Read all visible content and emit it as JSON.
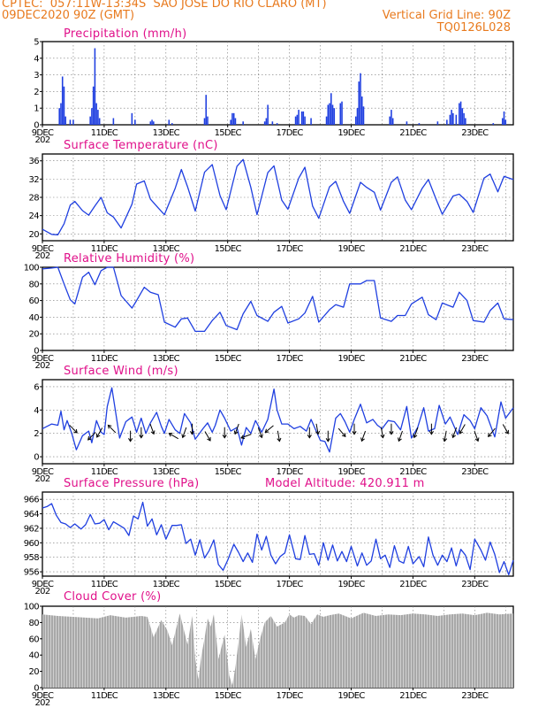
{
  "header": {
    "line1_left": "CPTEC:  057:11W-13:34S  SAO JOSE DO RIO CLARO (MT)",
    "line2_left": "09DEC2020 90Z (GMT)",
    "line2_right": "Vertical Grid Line: 90Z",
    "line3_right": "TQ0126L028"
  },
  "colors": {
    "header": "#e87a1e",
    "title": "#e0108a",
    "series": "#1f3fe0",
    "cloud": "#a8a8a8",
    "arrows": "#000000"
  },
  "x_tick_labels": [
    "9DEC",
    "11DEC",
    "13DEC",
    "15DEC",
    "17DEC",
    "19DEC",
    "21DEC",
    "23DEC"
  ],
  "x_year_stub": "202",
  "chart_data": [
    {
      "type": "bar",
      "title": "Precipitation  (mm/h)",
      "ylabel": "mm/h",
      "ylim": [
        0,
        5
      ],
      "yticks": [
        0,
        1,
        2,
        3,
        4,
        5
      ],
      "x_range_days": [
        0,
        15.25
      ],
      "bars": [
        [
          0.55,
          1.0
        ],
        [
          0.6,
          1.3
        ],
        [
          0.65,
          2.9
        ],
        [
          0.7,
          2.3
        ],
        [
          0.75,
          0.5
        ],
        [
          0.9,
          0.3
        ],
        [
          1.0,
          0.3
        ],
        [
          1.55,
          0.5
        ],
        [
          1.6,
          1.0
        ],
        [
          1.65,
          2.3
        ],
        [
          1.7,
          4.6
        ],
        [
          1.75,
          1.3
        ],
        [
          1.8,
          0.9
        ],
        [
          1.85,
          0.4
        ],
        [
          2.3,
          0.4
        ],
        [
          2.9,
          0.7
        ],
        [
          3.0,
          0.3
        ],
        [
          3.5,
          0.2
        ],
        [
          3.55,
          0.3
        ],
        [
          3.6,
          0.2
        ],
        [
          4.1,
          0.3
        ],
        [
          4.2,
          0.1
        ],
        [
          5.25,
          0.4
        ],
        [
          5.3,
          1.8
        ],
        [
          5.35,
          0.5
        ],
        [
          6.1,
          0.3
        ],
        [
          6.15,
          0.7
        ],
        [
          6.2,
          0.7
        ],
        [
          6.25,
          0.4
        ],
        [
          6.5,
          0.2
        ],
        [
          7.2,
          0.2
        ],
        [
          7.25,
          0.4
        ],
        [
          7.3,
          1.2
        ],
        [
          7.45,
          0.2
        ],
        [
          7.6,
          0.1
        ],
        [
          8.2,
          0.5
        ],
        [
          8.25,
          0.6
        ],
        [
          8.3,
          0.9
        ],
        [
          8.4,
          0.8
        ],
        [
          8.45,
          0.8
        ],
        [
          8.5,
          0.5
        ],
        [
          8.7,
          0.4
        ],
        [
          9.2,
          0.5
        ],
        [
          9.25,
          1.2
        ],
        [
          9.3,
          1.3
        ],
        [
          9.35,
          1.9
        ],
        [
          9.4,
          1.2
        ],
        [
          9.45,
          1.0
        ],
        [
          9.65,
          1.3
        ],
        [
          9.7,
          1.4
        ],
        [
          10.15,
          0.5
        ],
        [
          10.2,
          1.0
        ],
        [
          10.25,
          2.6
        ],
        [
          10.3,
          3.1
        ],
        [
          10.35,
          1.7
        ],
        [
          10.4,
          1.1
        ],
        [
          11.25,
          0.5
        ],
        [
          11.3,
          0.9
        ],
        [
          11.35,
          0.4
        ],
        [
          11.8,
          0.2
        ],
        [
          12.2,
          0.1
        ],
        [
          12.8,
          0.2
        ],
        [
          13.1,
          0.3
        ],
        [
          13.2,
          0.6
        ],
        [
          13.25,
          0.9
        ],
        [
          13.3,
          0.7
        ],
        [
          13.4,
          0.6
        ],
        [
          13.5,
          1.3
        ],
        [
          13.55,
          1.4
        ],
        [
          13.6,
          1.0
        ],
        [
          13.65,
          0.7
        ],
        [
          13.7,
          0.4
        ],
        [
          14.6,
          0.1
        ],
        [
          14.9,
          0.4
        ],
        [
          14.95,
          0.8
        ],
        [
          15.0,
          0.3
        ]
      ]
    },
    {
      "type": "line",
      "title": "Surface Temperature (nC)",
      "ylabel": "nC",
      "ylim": [
        18.5,
        37.5
      ],
      "yticks": [
        20,
        24,
        28,
        32,
        36
      ],
      "x": [
        0,
        0.3,
        0.5,
        0.7,
        0.9,
        1.05,
        1.3,
        1.5,
        1.7,
        1.9,
        2.1,
        2.3,
        2.55,
        2.9,
        3.05,
        3.3,
        3.5,
        3.75,
        3.95,
        4.3,
        4.5,
        4.7,
        4.95,
        5.25,
        5.5,
        5.75,
        5.95,
        6.3,
        6.5,
        6.75,
        6.95,
        7.3,
        7.5,
        7.75,
        7.95,
        8.3,
        8.5,
        8.75,
        8.95,
        9.3,
        9.5,
        9.75,
        9.95,
        10.3,
        10.5,
        10.75,
        10.95,
        11.3,
        11.5,
        11.75,
        11.95,
        12.3,
        12.5,
        12.75,
        12.95,
        13.3,
        13.5,
        13.75,
        13.95,
        14.3,
        14.5,
        14.75,
        14.95,
        15.25
      ],
      "y": [
        21,
        19.9,
        19.8,
        22.2,
        26.3,
        27.1,
        25.1,
        24.1,
        26.1,
        28,
        24.6,
        23.7,
        21.3,
        26.5,
        30.9,
        31.6,
        27.6,
        25.7,
        24.2,
        30,
        34.1,
        30.3,
        25,
        33.5,
        35.2,
        28.4,
        25.3,
        34.8,
        36.3,
        30.2,
        24.2,
        33.4,
        34.9,
        27.4,
        25.4,
        32.2,
        34.6,
        26.1,
        23.4,
        30.3,
        31.5,
        27.1,
        24.5,
        31.3,
        30.2,
        29.1,
        25.2,
        31.3,
        32.5,
        27.4,
        25.3,
        30,
        31.9,
        27.6,
        24.3,
        28.3,
        28.7,
        27.1,
        24.7,
        32.2,
        33.1,
        29.2,
        32.6,
        31.9
      ]
    },
    {
      "type": "line",
      "title": "Relative Humidity  (%)",
      "ylabel": "%",
      "ylim": [
        0,
        100
      ],
      "yticks": [
        0,
        20,
        40,
        60,
        80,
        100
      ],
      "x": [
        0,
        0.3,
        0.5,
        0.7,
        0.9,
        1.05,
        1.3,
        1.5,
        1.7,
        1.9,
        2.1,
        2.3,
        2.55,
        2.9,
        3.05,
        3.3,
        3.5,
        3.75,
        3.95,
        4.3,
        4.5,
        4.7,
        4.95,
        5.25,
        5.5,
        5.75,
        5.95,
        6.3,
        6.5,
        6.75,
        6.95,
        7.3,
        7.5,
        7.75,
        7.95,
        8.3,
        8.5,
        8.75,
        8.95,
        9.3,
        9.5,
        9.75,
        9.95,
        10.3,
        10.5,
        10.75,
        10.95,
        11.3,
        11.5,
        11.75,
        11.95,
        12.3,
        12.5,
        12.75,
        12.95,
        13.3,
        13.5,
        13.75,
        13.95,
        14.3,
        14.5,
        14.75,
        14.95,
        15.25
      ],
      "y": [
        98,
        99,
        100,
        80,
        61,
        56,
        88,
        94,
        79,
        96,
        100,
        100,
        66,
        51,
        60,
        76,
        70,
        67,
        34,
        28,
        38,
        39,
        23,
        23,
        36,
        46,
        30,
        25,
        44,
        59,
        42,
        35,
        46,
        53,
        33,
        38,
        45,
        65,
        34,
        49,
        55,
        52,
        80,
        80,
        84,
        84,
        39,
        35,
        42,
        42,
        56,
        64,
        43,
        37,
        57,
        52,
        70,
        60,
        36,
        34,
        48,
        57,
        38,
        37
      ]
    },
    {
      "type": "line",
      "title": "Surface  Wind  (m/s)",
      "ylabel": "m/s",
      "ylim": [
        -0.6,
        6.6
      ],
      "yticks": [
        0,
        2,
        4,
        6
      ],
      "x": [
        0,
        0.3,
        0.5,
        0.6,
        0.7,
        0.8,
        0.95,
        1.1,
        1.3,
        1.5,
        1.6,
        1.75,
        1.9,
        2.0,
        2.1,
        2.25,
        2.35,
        2.5,
        2.7,
        2.9,
        3.05,
        3.2,
        3.35,
        3.5,
        3.7,
        3.85,
        3.95,
        4.1,
        4.3,
        4.45,
        4.6,
        4.8,
        4.95,
        5.2,
        5.35,
        5.5,
        5.6,
        5.75,
        5.9,
        6.1,
        6.3,
        6.45,
        6.6,
        6.75,
        6.9,
        7.1,
        7.3,
        7.5,
        7.6,
        7.75,
        7.95,
        8.15,
        8.35,
        8.55,
        8.7,
        8.85,
        9.0,
        9.15,
        9.3,
        9.5,
        9.65,
        9.8,
        9.95,
        10.1,
        10.3,
        10.5,
        10.7,
        10.85,
        11.0,
        11.2,
        11.4,
        11.6,
        11.8,
        11.95,
        12.15,
        12.35,
        12.5,
        12.7,
        12.85,
        13.05,
        13.2,
        13.45,
        13.65,
        13.85,
        14.0,
        14.2,
        14.4,
        14.65,
        14.85,
        15.0,
        15.25
      ],
      "y": [
        2.4,
        2.8,
        2.7,
        3.9,
        2.3,
        3.1,
        2.0,
        0.6,
        1.8,
        2.2,
        1.2,
        3.1,
        2.1,
        1.9,
        4.3,
        5.9,
        4.2,
        1.6,
        3.0,
        3.4,
        2.1,
        3.3,
        2.0,
        2.9,
        3.8,
        2.6,
        2.0,
        3.2,
        2.3,
        2.0,
        3.7,
        2.9,
        1.5,
        2.4,
        2.9,
        2.1,
        2.7,
        4.0,
        3.3,
        2.2,
        2.5,
        1.0,
        2.5,
        2.0,
        3.1,
        2.1,
        3.2,
        5.8,
        4.0,
        2.8,
        2.8,
        2.4,
        2.6,
        2.2,
        3.2,
        2.3,
        1.4,
        1.3,
        0.4,
        3.3,
        3.7,
        3.0,
        2.1,
        3.2,
        4.5,
        2.9,
        3.2,
        2.7,
        2.4,
        3.1,
        3.0,
        2.3,
        4.3,
        1.6,
        2.5,
        4.2,
        2.2,
        2.4,
        4.4,
        2.8,
        3.4,
        1.9,
        3.6,
        3.1,
        2.4,
        4.2,
        3.5,
        1.7,
        4.7,
        3.3,
        4.2
      ]
    },
    {
      "type": "line",
      "title": "Surface  Pressure (hPa)",
      "annotation": "Model Altitude: 420.911  m",
      "ylabel": "hPa",
      "ylim": [
        955.4,
        967.0
      ],
      "yticks": [
        956,
        958,
        960,
        962,
        964,
        966
      ],
      "x": [
        0,
        0.15,
        0.3,
        0.45,
        0.6,
        0.75,
        0.9,
        1.05,
        1.25,
        1.4,
        1.55,
        1.7,
        1.85,
        2.0,
        2.15,
        2.3,
        2.5,
        2.65,
        2.8,
        2.95,
        3.1,
        3.25,
        3.4,
        3.55,
        3.7,
        3.85,
        4.0,
        4.2,
        4.35,
        4.5,
        4.65,
        4.8,
        4.95,
        5.1,
        5.25,
        5.4,
        5.55,
        5.7,
        5.85,
        6.0,
        6.2,
        6.35,
        6.5,
        6.65,
        6.8,
        6.95,
        7.1,
        7.25,
        7.4,
        7.55,
        7.7,
        7.85,
        8.0,
        8.2,
        8.35,
        8.5,
        8.65,
        8.8,
        8.95,
        9.1,
        9.25,
        9.4,
        9.55,
        9.7,
        9.85,
        10.0,
        10.2,
        10.35,
        10.5,
        10.65,
        10.8,
        10.95,
        11.1,
        11.25,
        11.4,
        11.55,
        11.7,
        11.85,
        12.0,
        12.2,
        12.35,
        12.5,
        12.65,
        12.8,
        12.95,
        13.1,
        13.25,
        13.4,
        13.55,
        13.7,
        13.85,
        14.0,
        14.2,
        14.35,
        14.5,
        14.65,
        14.8,
        14.95,
        15.1,
        15.25
      ],
      "y": [
        964.8,
        965.0,
        965.4,
        963.8,
        962.8,
        962.6,
        962.1,
        962.6,
        961.9,
        962.5,
        963.9,
        962.6,
        962.7,
        963.2,
        961.8,
        962.9,
        962.4,
        962.0,
        961.0,
        963.7,
        963.3,
        965.6,
        962.3,
        963.3,
        961.1,
        962.5,
        960.5,
        962.4,
        962.4,
        962.5,
        959.9,
        960.5,
        958.3,
        960.4,
        957.9,
        958.9,
        960.4,
        957.0,
        956.2,
        957.6,
        959.8,
        958.7,
        957.4,
        958.6,
        957.3,
        961.2,
        959.0,
        960.9,
        958.3,
        957.1,
        958.1,
        958.6,
        961.1,
        957.8,
        957.7,
        961.0,
        958.4,
        958.5,
        956.9,
        960.0,
        957.6,
        959.7,
        957.5,
        958.8,
        957.4,
        959.5,
        956.8,
        958.6,
        956.9,
        957.5,
        960.5,
        957.8,
        958.3,
        956.6,
        959.6,
        957.5,
        957.2,
        959.5,
        957.1,
        958.1,
        956.7,
        960.8,
        958.3,
        956.9,
        958.3,
        957.4,
        959.3,
        956.8,
        959.1,
        958.3,
        956.3,
        960.5,
        959.0,
        957.6,
        960.1,
        958.4,
        955.9,
        957.4,
        955.6,
        957.6
      ]
    },
    {
      "type": "area",
      "title": "Cloud  Cover  (%)",
      "ylabel": "%",
      "ylim": [
        0,
        100
      ],
      "yticks": [
        0,
        20,
        40,
        60,
        80,
        100
      ],
      "x": [
        0,
        0.5,
        1.0,
        1.4,
        1.8,
        2.2,
        2.7,
        3.2,
        3.4,
        3.6,
        3.85,
        4.05,
        4.2,
        4.45,
        4.7,
        4.85,
        4.95,
        5.05,
        5.15,
        5.25,
        5.35,
        5.45,
        5.55,
        5.7,
        5.9,
        6.05,
        6.15,
        6.25,
        6.35,
        6.45,
        6.6,
        6.75,
        6.9,
        7.05,
        7.2,
        7.4,
        7.6,
        7.85,
        8.0,
        8.15,
        8.3,
        8.5,
        8.7,
        8.9,
        9.1,
        9.3,
        9.6,
        10.0,
        10.4,
        10.8,
        11.2,
        11.6,
        12.0,
        12.4,
        12.8,
        13.2,
        13.6,
        14.0,
        14.4,
        14.8,
        15.25
      ],
      "y": [
        90,
        88,
        87,
        86,
        85,
        89,
        86,
        88,
        87,
        62,
        83,
        70,
        52,
        91,
        53,
        88,
        35,
        10,
        40,
        60,
        85,
        75,
        90,
        35,
        65,
        15,
        3,
        25,
        55,
        90,
        50,
        72,
        35,
        60,
        80,
        88,
        75,
        80,
        90,
        86,
        89,
        88,
        78,
        90,
        87,
        89,
        91,
        85,
        92,
        88,
        90,
        89,
        91,
        90,
        88,
        90,
        91,
        89,
        92,
        90,
        91
      ]
    }
  ],
  "wind_vectors": {
    "x": [
      1.0,
      1.6,
      1.85,
      2.25,
      2.85,
      3.2,
      3.55,
      4.25,
      4.6,
      4.85,
      5.35,
      5.9,
      6.3,
      6.6,
      7.05,
      7.35,
      7.65,
      8.65,
      8.9,
      9.25,
      9.7,
      10.1,
      10.4,
      11.0,
      11.3,
      11.6,
      12.1,
      12.6,
      13.05,
      13.35,
      13.6,
      14.05,
      14.55,
      15.0
    ],
    "deg": [
      135,
      225,
      210,
      315,
      180,
      180,
      160,
      300,
      200,
      180,
      150,
      180,
      200,
      250,
      160,
      230,
      170,
      180,
      170,
      180,
      140,
      180,
      200,
      170,
      180,
      200,
      200,
      180,
      190,
      200,
      210,
      160,
      220,
      150
    ]
  },
  "cloud_hatch_color": "#d0d0d0"
}
